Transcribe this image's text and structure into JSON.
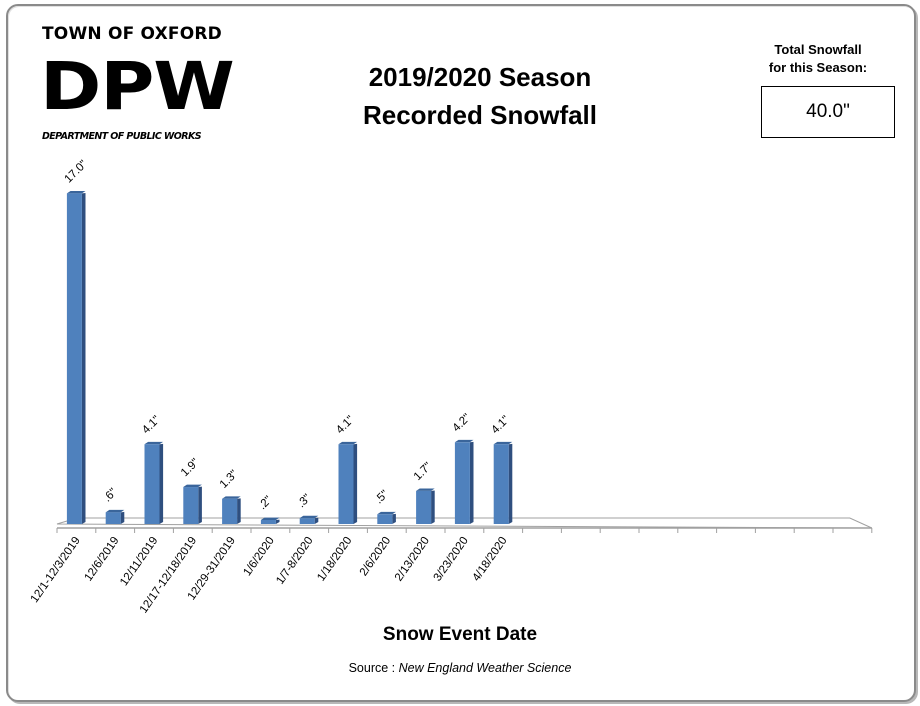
{
  "header": {
    "town": "TOWN OF OXFORD",
    "dpw": "DPW",
    "department": "DEPARTMENT OF PUBLIC WORKS"
  },
  "title": {
    "line1": "2019/2020 Season",
    "line2": "Recorded Snowfall"
  },
  "total": {
    "label_line1": "Total Snowfall",
    "label_line2": "for this Season:",
    "value": "40.0\""
  },
  "footer": {
    "xlabel": "Snow Event Date",
    "source_prefix": "Source : ",
    "source_name": "New England Weather Science"
  },
  "colors": {
    "bar_front": "#4f81bd",
    "bar_side": "#2f4f7f",
    "bar_top": "#3a659b",
    "axis": "#a0a0a0"
  },
  "chart_data": {
    "type": "bar",
    "title": "2019/2020 Season Recorded Snowfall",
    "xlabel": "Snow Event Date",
    "ylabel": "",
    "style": "3d-column",
    "grid": false,
    "legend": "none",
    "categories": [
      "12/1-12/3/2019",
      "12/6/2019",
      "12/11/2019",
      "12/17-12/18/2019",
      "12/29-31/2019",
      "1/6/2020",
      "1/7-8/2020",
      "1/18/2020",
      "2/6/2020",
      "2/13/2020",
      "3/23/2020",
      "4/18/2020"
    ],
    "values": [
      17.0,
      0.6,
      4.1,
      1.9,
      1.3,
      0.2,
      0.3,
      4.1,
      0.5,
      1.7,
      4.2,
      4.1
    ],
    "data_labels": [
      "17.0\"",
      ".6\"",
      "4.1\"",
      "1.9\"",
      "1.3\"",
      ".2\"",
      ".3\"",
      "4.1\"",
      ".5\"",
      "1.7\"",
      "4.2\"",
      "4.1\""
    ],
    "empty_slots_after": 9,
    "total": "40.0\"",
    "source": "New England Weather Science"
  }
}
